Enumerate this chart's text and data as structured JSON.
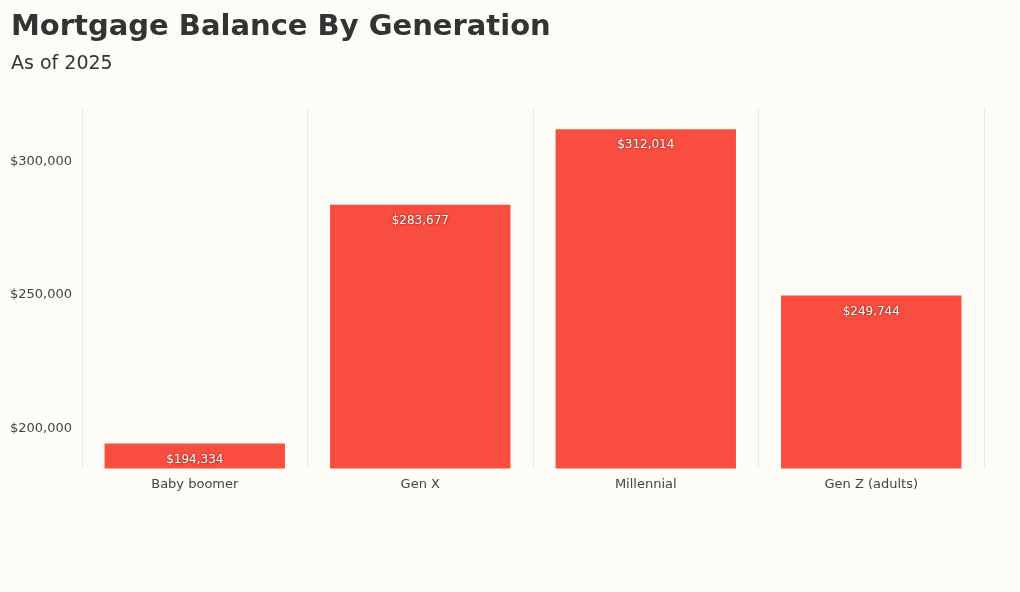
{
  "chart_data": {
    "type": "bar",
    "title": "Mortgage Balance By Generation",
    "subtitle": "As of 2025",
    "categories": [
      "Baby boomer",
      "Gen X",
      "Millennial",
      "Gen Z (adults)"
    ],
    "values": [
      194334,
      283677,
      312014,
      249744
    ],
    "color": "#f94d3f",
    "ylim": [
      185000,
      320000
    ],
    "yticks": [
      {
        "value": 200000,
        "label": "$200,000"
      },
      {
        "value": 250000,
        "label": "$250,000"
      },
      {
        "value": 300000,
        "label": "$300,000"
      }
    ],
    "value_labels": [
      "$194,334",
      "$283,677",
      "$312,014",
      "$249,744"
    ],
    "grid": "x",
    "legend": false
  }
}
